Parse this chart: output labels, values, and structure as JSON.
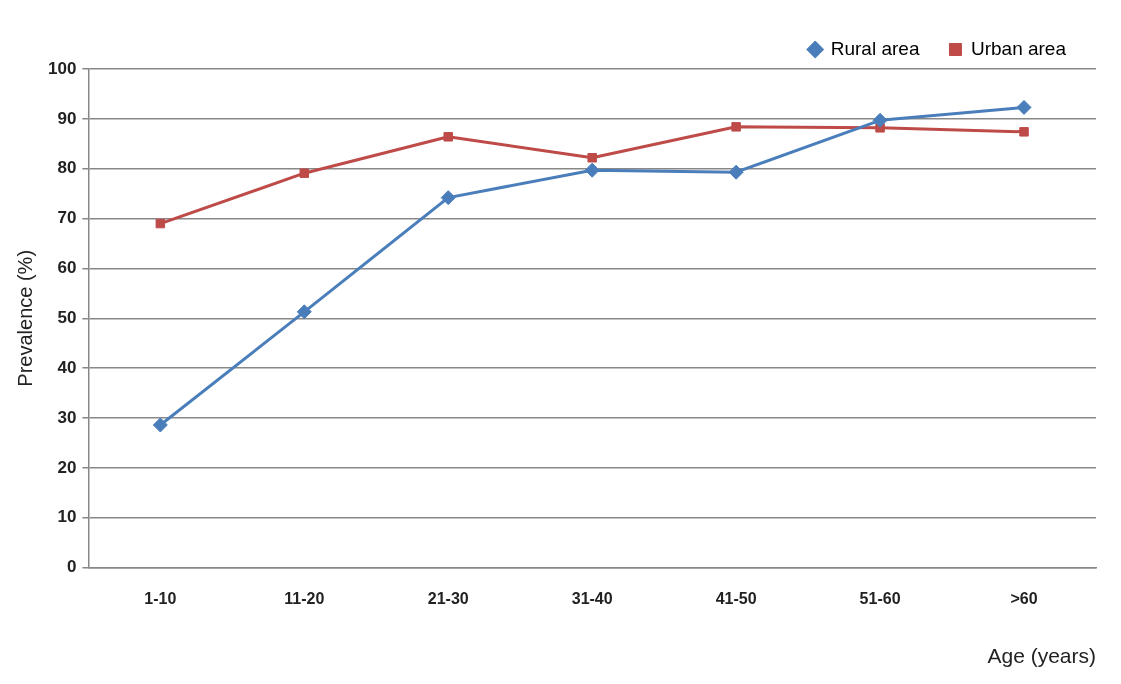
{
  "chart_data": {
    "type": "line",
    "xlabel": "Age (years)",
    "ylabel": "Prevalence (%)",
    "categories": [
      "1-10",
      "11-20",
      "21-30",
      "31-40",
      "41-50",
      "51-60",
      ">60"
    ],
    "series": [
      {
        "name": "Rural area",
        "color": "#4a7ebb",
        "marker": "diamond",
        "values": [
          28.6,
          51.3,
          74.2,
          79.7,
          79.3,
          89.7,
          92.3
        ]
      },
      {
        "name": "Urban area",
        "color": "#be4b48",
        "marker": "square",
        "values": [
          69.0,
          79.1,
          86.4,
          82.2,
          88.4,
          88.2,
          87.4
        ]
      }
    ],
    "ylim": [
      0,
      100
    ],
    "yticks": [
      0,
      10,
      20,
      30,
      40,
      50,
      60,
      70,
      80,
      90,
      100
    ],
    "grid": "y",
    "legend": "top right",
    "line_style": "solid"
  }
}
